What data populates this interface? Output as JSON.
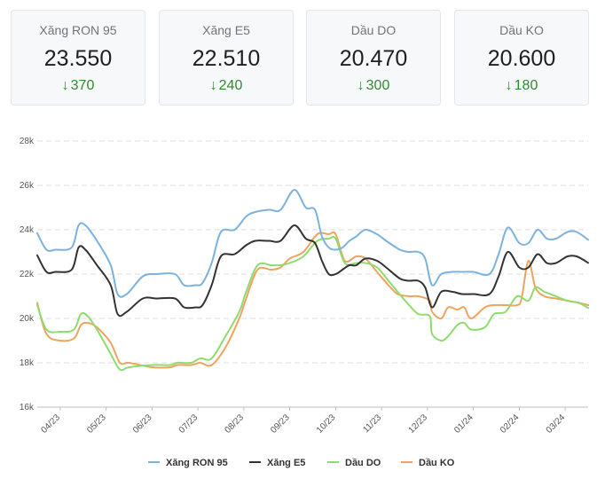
{
  "cards": [
    {
      "label": "Xăng RON 95",
      "price": "23.550",
      "change": "370",
      "direction": "down"
    },
    {
      "label": "Xăng E5",
      "price": "22.510",
      "change": "240",
      "direction": "down"
    },
    {
      "label": "Dầu DO",
      "price": "20.470",
      "change": "300",
      "direction": "down"
    },
    {
      "label": "Dầu KO",
      "price": "20.600",
      "change": "180",
      "direction": "down"
    }
  ],
  "chart_data": {
    "type": "line",
    "ylim": [
      16000,
      28000
    ],
    "yticks": [
      16000,
      18000,
      20000,
      22000,
      24000,
      26000,
      28000
    ],
    "ytick_labels": [
      "16k",
      "18k",
      "20k",
      "22k",
      "24k",
      "26k",
      "28k"
    ],
    "xlim": [
      0,
      12
    ],
    "xticks": [
      0.5,
      1.5,
      2.5,
      3.5,
      4.5,
      5.5,
      6.5,
      7.5,
      8.5,
      9.5,
      10.5,
      11.5
    ],
    "xtick_labels": [
      "04/23",
      "05/23",
      "06/23",
      "07/23",
      "08/23",
      "09/23",
      "10/23",
      "11/23",
      "12/23",
      "01/24",
      "02/24",
      "03/24"
    ],
    "grid": true,
    "legend_position": "bottom",
    "series": [
      {
        "name": "Xăng RON 95",
        "color": "#7cb2dd",
        "x": [
          0,
          0.2,
          0.4,
          0.75,
          0.9,
          1.05,
          1.3,
          1.6,
          1.75,
          1.95,
          2.3,
          2.6,
          3.0,
          3.2,
          3.45,
          3.6,
          3.8,
          4.0,
          4.3,
          4.55,
          4.75,
          5.05,
          5.3,
          5.6,
          5.85,
          6.05,
          6.2,
          6.35,
          6.5,
          6.65,
          6.8,
          6.95,
          7.15,
          7.4,
          7.6,
          7.9,
          8.1,
          8.3,
          8.45,
          8.6,
          8.8,
          9.05,
          9.25,
          9.5,
          9.85,
          10.05,
          10.25,
          10.5,
          10.7,
          10.9,
          11.1,
          11.3,
          11.55,
          11.75,
          12.0
        ],
        "y": [
          23850,
          23100,
          23100,
          23200,
          24200,
          24200,
          23500,
          22400,
          21100,
          21100,
          21900,
          22000,
          22000,
          21500,
          21500,
          21600,
          22500,
          23900,
          24000,
          24600,
          24800,
          24900,
          24900,
          25800,
          25000,
          24900,
          23700,
          23200,
          23100,
          23200,
          23500,
          23700,
          24000,
          23800,
          23500,
          23100,
          23000,
          23000,
          22700,
          21500,
          22000,
          22100,
          22100,
          22100,
          22000,
          22900,
          24100,
          23400,
          23400,
          24000,
          23600,
          23600,
          23900,
          23900,
          23550
        ]
      },
      {
        "name": "Xăng E5",
        "color": "#333333",
        "x": [
          0,
          0.2,
          0.4,
          0.75,
          0.9,
          1.05,
          1.3,
          1.6,
          1.75,
          1.95,
          2.3,
          2.6,
          3.0,
          3.2,
          3.45,
          3.6,
          3.8,
          4.0,
          4.3,
          4.55,
          4.75,
          5.05,
          5.3,
          5.6,
          5.85,
          6.05,
          6.2,
          6.35,
          6.5,
          6.65,
          6.8,
          6.95,
          7.15,
          7.4,
          7.6,
          7.9,
          8.1,
          8.3,
          8.45,
          8.6,
          8.8,
          9.05,
          9.25,
          9.5,
          9.85,
          10.05,
          10.25,
          10.5,
          10.7,
          10.9,
          11.1,
          11.3,
          11.55,
          11.75,
          12.0
        ],
        "y": [
          22850,
          22100,
          22100,
          22200,
          23200,
          23100,
          22400,
          21500,
          20200,
          20300,
          20900,
          20900,
          20900,
          20500,
          20500,
          20600,
          21500,
          22800,
          22900,
          23300,
          23500,
          23500,
          23500,
          24200,
          23600,
          23400,
          22600,
          22000,
          22000,
          22200,
          22400,
          22400,
          22700,
          22600,
          22300,
          21800,
          21700,
          21700,
          21400,
          20500,
          21200,
          21200,
          21100,
          21100,
          21100,
          21900,
          23000,
          22300,
          22300,
          22900,
          22500,
          22500,
          22800,
          22800,
          22510
        ]
      },
      {
        "name": "Dầu DO",
        "color": "#8edc6d",
        "x": [
          0,
          0.2,
          0.5,
          0.8,
          0.95,
          1.1,
          1.3,
          1.6,
          1.8,
          2.0,
          2.5,
          2.9,
          3.05,
          3.35,
          3.55,
          3.8,
          4.1,
          4.4,
          4.55,
          4.8,
          5.1,
          5.3,
          5.5,
          5.8,
          6.1,
          6.35,
          6.5,
          6.7,
          6.95,
          7.15,
          7.4,
          7.65,
          7.85,
          8.1,
          8.3,
          8.55,
          8.6,
          8.8,
          8.95,
          9.15,
          9.3,
          9.45,
          9.75,
          9.95,
          10.2,
          10.45,
          10.7,
          10.85,
          11.05,
          11.3,
          11.55,
          11.8,
          12.0
        ],
        "y": [
          20600,
          19500,
          19400,
          19500,
          20200,
          20100,
          19500,
          18400,
          17700,
          17800,
          17900,
          17900,
          18000,
          18000,
          18200,
          18200,
          19200,
          20300,
          21200,
          22400,
          22400,
          22400,
          22500,
          22800,
          23500,
          23600,
          23600,
          22500,
          22500,
          22500,
          22300,
          21700,
          21200,
          20600,
          20200,
          20100,
          19300,
          19000,
          19200,
          19700,
          19800,
          19500,
          19600,
          20200,
          20300,
          21000,
          20800,
          21400,
          21200,
          21000,
          20800,
          20700,
          20470
        ]
      },
      {
        "name": "Dầu KO",
        "color": "#f0a35e",
        "x": [
          0,
          0.2,
          0.5,
          0.8,
          0.95,
          1.1,
          1.3,
          1.6,
          1.8,
          2.0,
          2.5,
          2.9,
          3.05,
          3.35,
          3.55,
          3.8,
          4.1,
          4.4,
          4.55,
          4.8,
          5.1,
          5.3,
          5.5,
          5.8,
          6.1,
          6.35,
          6.5,
          6.7,
          6.95,
          7.15,
          7.4,
          7.65,
          7.85,
          8.1,
          8.3,
          8.55,
          8.6,
          8.8,
          8.95,
          9.15,
          9.3,
          9.45,
          9.75,
          9.95,
          10.2,
          10.45,
          10.55,
          10.7,
          10.85,
          11.05,
          11.3,
          11.55,
          11.8,
          12.0
        ],
        "y": [
          20700,
          19300,
          19000,
          19100,
          19700,
          19800,
          19600,
          18900,
          18000,
          18000,
          17800,
          17800,
          17900,
          17900,
          18000,
          17900,
          18700,
          20000,
          20900,
          22200,
          22200,
          22300,
          22700,
          23000,
          23800,
          23800,
          23800,
          22600,
          22800,
          22700,
          22100,
          21500,
          21100,
          21000,
          21000,
          20800,
          20300,
          20000,
          20500,
          20400,
          20500,
          20000,
          20500,
          20600,
          20600,
          20600,
          20900,
          22600,
          21400,
          21000,
          20900,
          20800,
          20700,
          20600
        ]
      }
    ]
  }
}
